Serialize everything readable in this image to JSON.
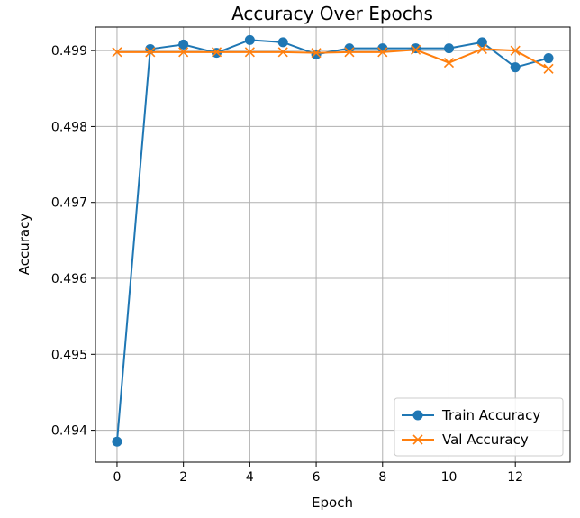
{
  "chart_data": {
    "type": "line",
    "title": "Accuracy Over Epochs",
    "xlabel": "Epoch",
    "ylabel": "Accuracy",
    "xlim": [
      -0.65,
      13.65
    ],
    "ylim": [
      0.49358,
      0.49931
    ],
    "xticks": [
      0,
      2,
      4,
      6,
      8,
      10,
      12
    ],
    "yticks": [
      0.494,
      0.495,
      0.496,
      0.497,
      0.498,
      0.499
    ],
    "ytick_labels": [
      "0.494",
      "0.495",
      "0.496",
      "0.497",
      "0.498",
      "0.499"
    ],
    "grid": true,
    "legend_position": "lower-right",
    "x": [
      0,
      1,
      2,
      3,
      4,
      5,
      6,
      7,
      8,
      9,
      10,
      11,
      12,
      13
    ],
    "series": [
      {
        "name": "Train Accuracy",
        "color": "#1f77b4",
        "marker": "circle",
        "values": [
          0.49385,
          0.49902,
          0.49908,
          0.49897,
          0.49914,
          0.49911,
          0.49895,
          0.49903,
          0.49903,
          0.49903,
          0.49903,
          0.49911,
          0.49878,
          0.4989
        ]
      },
      {
        "name": "Val Accuracy",
        "color": "#ff7f0e",
        "marker": "x",
        "values": [
          0.49898,
          0.49898,
          0.49898,
          0.49898,
          0.49898,
          0.49898,
          0.49897,
          0.49898,
          0.49898,
          0.49901,
          0.49884,
          0.49902,
          0.499,
          0.49876
        ]
      }
    ]
  }
}
